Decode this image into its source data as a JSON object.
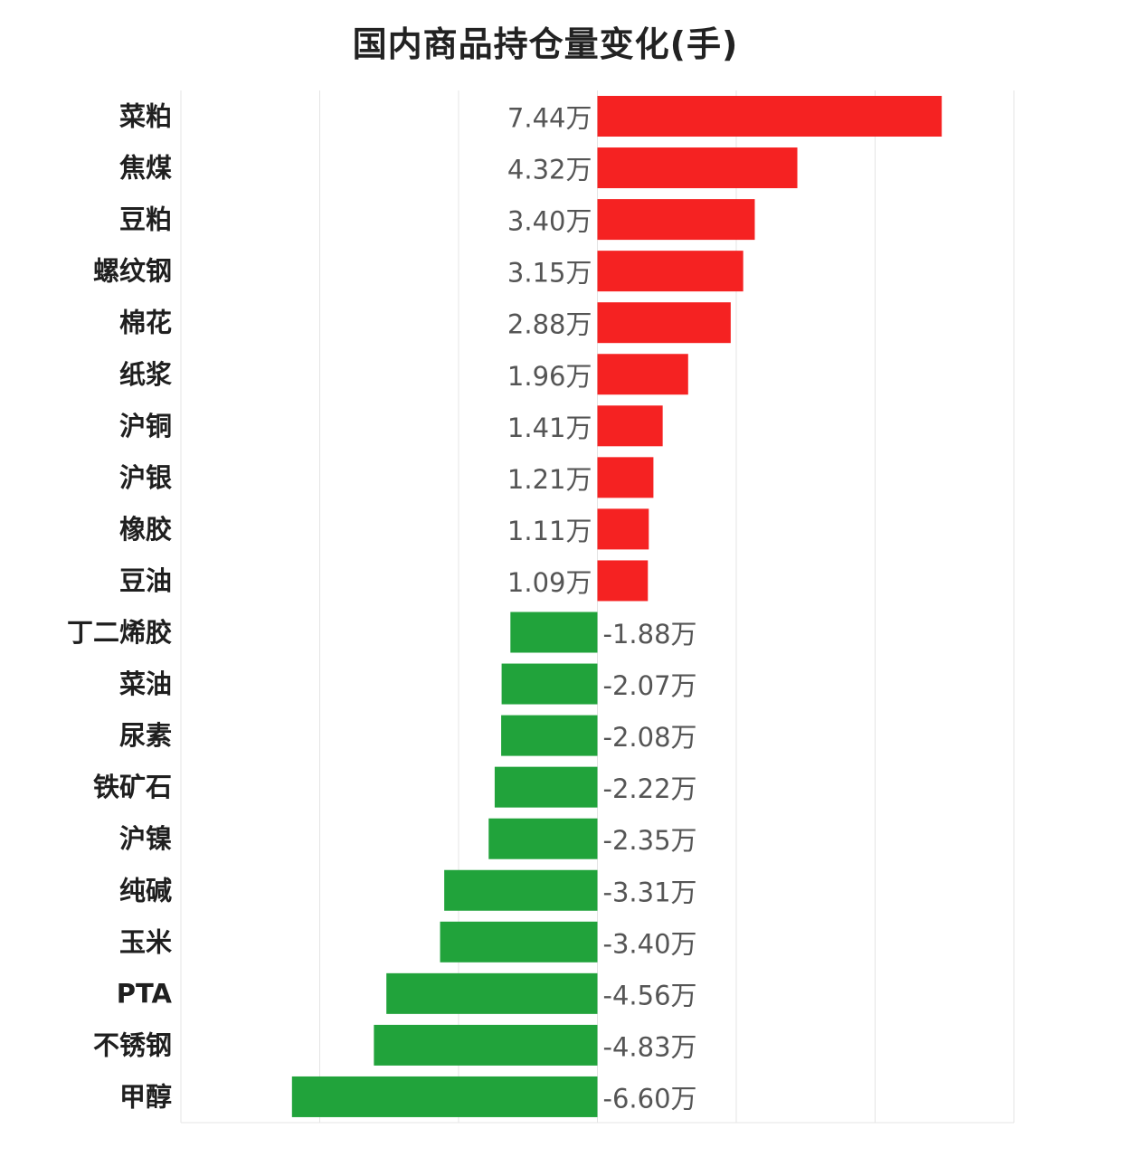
{
  "chart_data": {
    "type": "bar",
    "orientation": "horizontal",
    "title": "国内商品持仓量变化(手)",
    "categories": [
      "菜粕",
      "焦煤",
      "豆粕",
      "螺纹钢",
      "棉花",
      "纸浆",
      "沪铜",
      "沪银",
      "橡胶",
      "豆油",
      "丁二烯胶",
      "菜油",
      "尿素",
      "铁矿石",
      "沪镍",
      "纯碱",
      "玉米",
      "PTA",
      "不锈钢",
      "甲醇"
    ],
    "values": [
      7.44,
      4.32,
      3.4,
      3.15,
      2.88,
      1.96,
      1.41,
      1.21,
      1.11,
      1.09,
      -1.88,
      -2.07,
      -2.08,
      -2.22,
      -2.35,
      -3.31,
      -3.4,
      -4.56,
      -4.83,
      -6.6
    ],
    "value_labels": [
      "7.44万",
      "4.32万",
      "3.40万",
      "3.15万",
      "2.88万",
      "1.96万",
      "1.41万",
      "1.21万",
      "1.11万",
      "1.09万",
      "-1.88万",
      "-2.07万",
      "-2.08万",
      "-2.22万",
      "-2.35万",
      "-3.31万",
      "-3.40万",
      "-4.56万",
      "-4.83万",
      "-6.60万"
    ],
    "xlim": [
      -9,
      9
    ],
    "grid": true,
    "legend": "none",
    "colors": {
      "positive": "#f52222",
      "negative": "#21a33b",
      "grid": "#e4e4e4"
    }
  }
}
